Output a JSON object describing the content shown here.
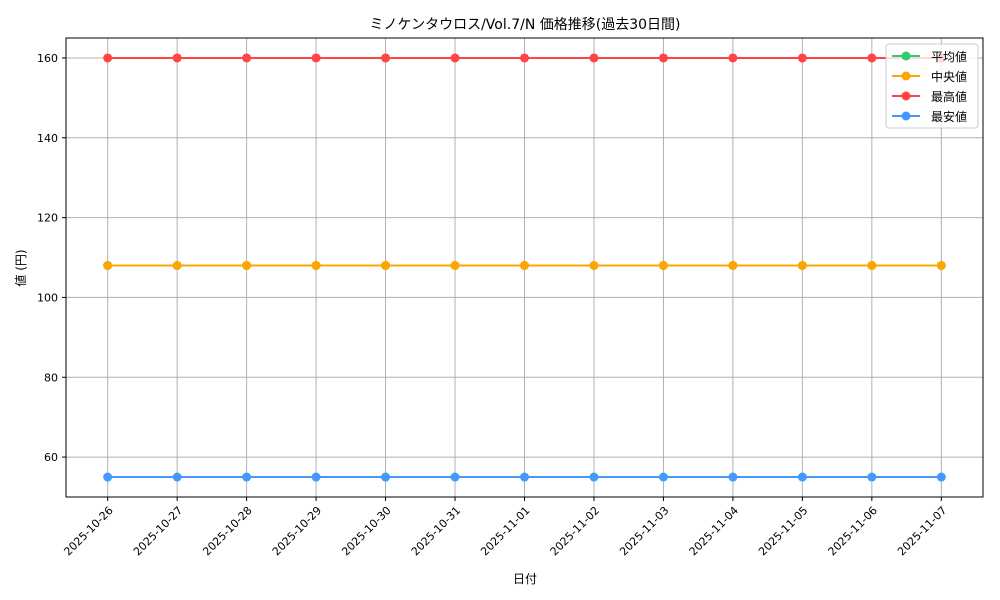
{
  "chart_data": {
    "type": "line",
    "title": "ミノケンタウロス/Vol.7/N 価格推移(過去30日間)",
    "xlabel": "日付",
    "ylabel": "値 (円)",
    "x": [
      "2025-10-26",
      "2025-10-27",
      "2025-10-28",
      "2025-10-29",
      "2025-10-30",
      "2025-10-31",
      "2025-11-01",
      "2025-11-02",
      "2025-11-03",
      "2025-11-04",
      "2025-11-05",
      "2025-11-06",
      "2025-11-07"
    ],
    "ylim": [
      50,
      165
    ],
    "yticks": [
      60,
      80,
      100,
      120,
      140,
      160
    ],
    "grid": true,
    "legend_position": "top-right",
    "series": [
      {
        "name": "平均値",
        "color": "#2ecc71",
        "values": [
          108,
          108,
          108,
          108,
          108,
          108,
          108,
          108,
          108,
          108,
          108,
          108,
          108
        ]
      },
      {
        "name": "中央値",
        "color": "#ffa500",
        "values": [
          108,
          108,
          108,
          108,
          108,
          108,
          108,
          108,
          108,
          108,
          108,
          108,
          108
        ]
      },
      {
        "name": "最高値",
        "color": "#ff4444",
        "values": [
          160,
          160,
          160,
          160,
          160,
          160,
          160,
          160,
          160,
          160,
          160,
          160,
          160
        ]
      },
      {
        "name": "最安値",
        "color": "#4499ff",
        "values": [
          55,
          55,
          55,
          55,
          55,
          55,
          55,
          55,
          55,
          55,
          55,
          55,
          55
        ]
      }
    ]
  }
}
